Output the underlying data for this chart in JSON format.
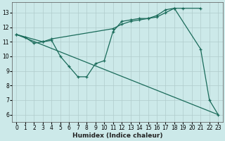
{
  "xlabel": "Humidex (Indice chaleur)",
  "xlim": [
    -0.5,
    23.5
  ],
  "ylim": [
    5.5,
    13.7
  ],
  "yticks": [
    6,
    7,
    8,
    9,
    10,
    11,
    12,
    13
  ],
  "xticks": [
    0,
    1,
    2,
    3,
    4,
    5,
    6,
    7,
    8,
    9,
    10,
    11,
    12,
    13,
    14,
    15,
    16,
    17,
    18,
    19,
    20,
    21,
    22,
    23
  ],
  "bg_color": "#cce9e9",
  "grid_color": "#b0cccc",
  "line_color": "#1a6b5a",
  "line1_x": [
    0,
    1,
    2,
    3,
    4,
    5,
    6,
    7,
    8,
    9,
    10,
    11,
    12,
    13,
    14,
    15,
    16,
    17,
    18,
    21,
    22,
    23
  ],
  "line1_y": [
    11.5,
    11.3,
    10.9,
    11.0,
    11.1,
    10.0,
    9.3,
    8.6,
    8.6,
    9.5,
    9.7,
    11.7,
    12.4,
    12.5,
    12.6,
    12.6,
    12.8,
    13.2,
    13.3,
    10.5,
    7.0,
    6.0
  ],
  "line2_x": [
    0,
    3,
    4,
    11,
    12,
    13,
    14,
    15,
    16,
    17,
    18,
    19,
    21
  ],
  "line2_y": [
    11.5,
    11.0,
    11.2,
    11.9,
    12.2,
    12.4,
    12.5,
    12.6,
    12.7,
    13.0,
    13.3,
    13.3,
    13.3
  ],
  "line3_x": [
    0,
    23
  ],
  "line3_y": [
    11.5,
    6.0
  ],
  "tick_fontsize": 5.5,
  "xlabel_fontsize": 6.5
}
